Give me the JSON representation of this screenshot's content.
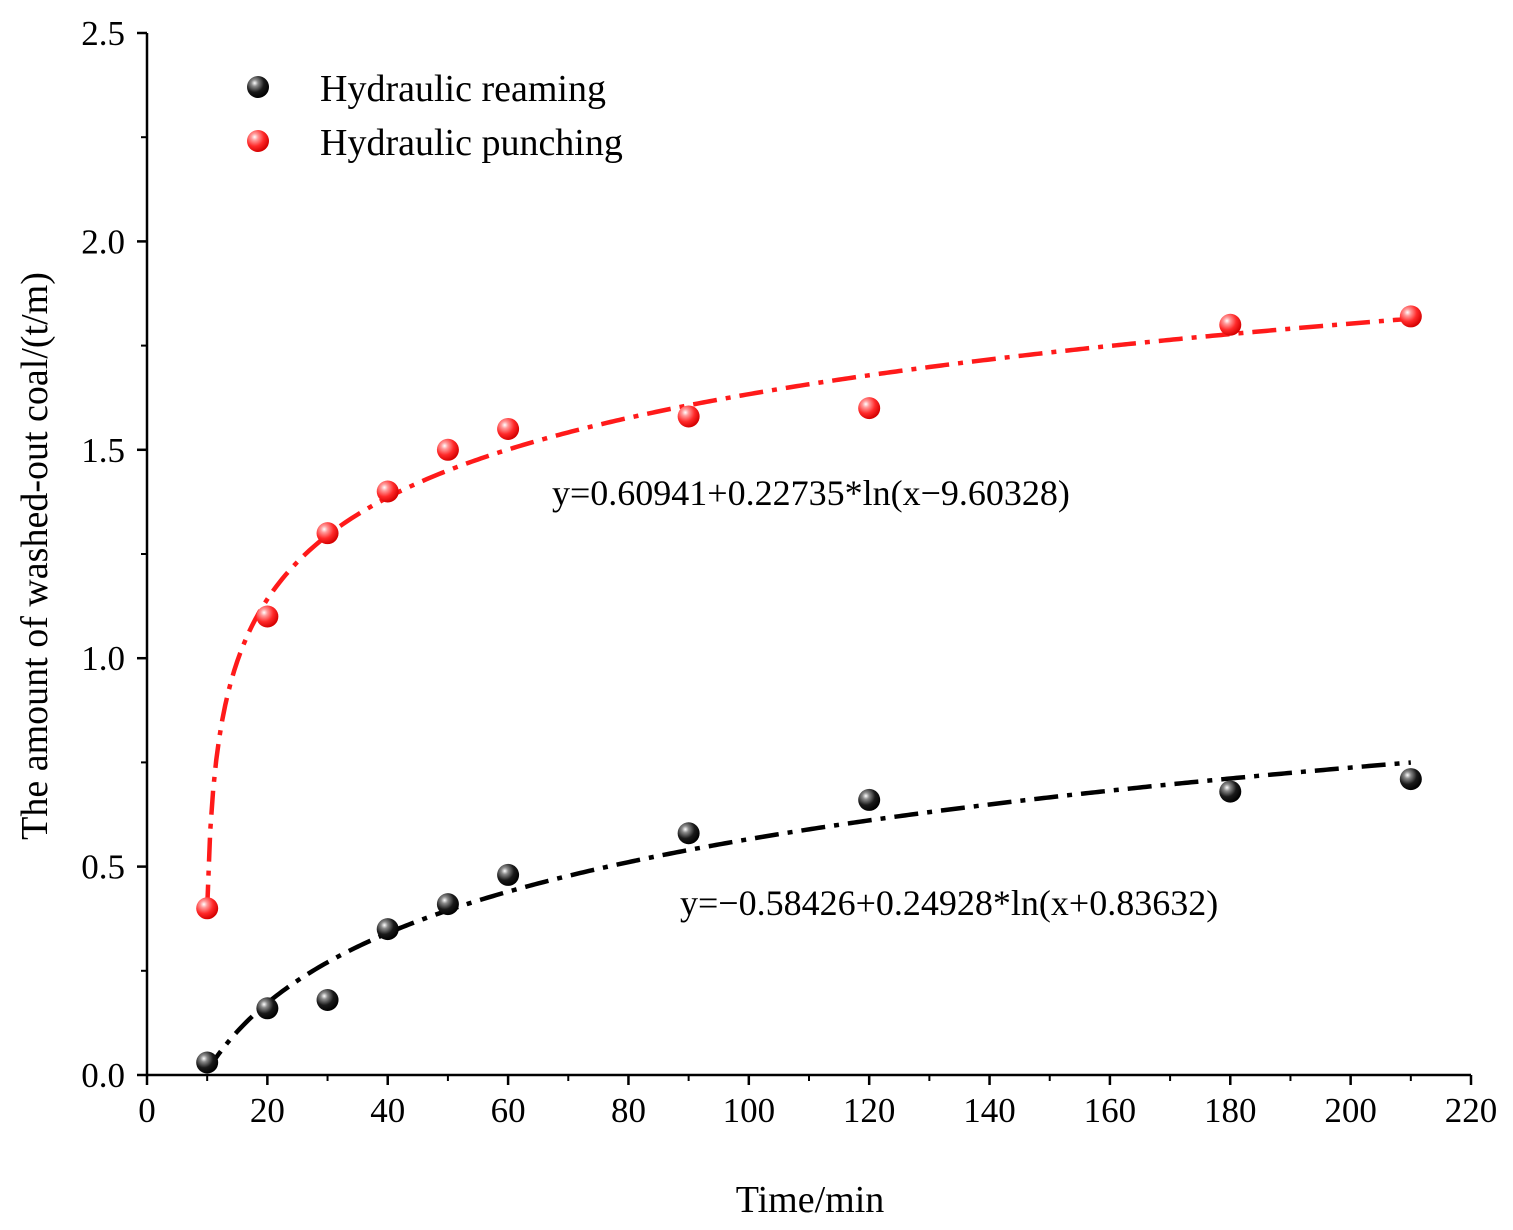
{
  "chart_data": {
    "type": "scatter",
    "xlabel": "Time/min",
    "ylabel": "The amount of washed-out coal/(t/m)",
    "xlim": [
      0,
      220
    ],
    "ylim": [
      0,
      2.5
    ],
    "xticks": [
      "0",
      "20",
      "40",
      "60",
      "80",
      "100",
      "120",
      "140",
      "160",
      "180",
      "200",
      "220"
    ],
    "yticks": [
      "0.0",
      "0.5",
      "1.0",
      "1.5",
      "2.0",
      "2.5"
    ],
    "legend_position": "top-left",
    "series": [
      {
        "name": "Hydraulic reaming",
        "color": "#000000",
        "x": [
          10,
          20,
          30,
          40,
          50,
          60,
          90,
          120,
          180,
          210
        ],
        "y": [
          0.03,
          0.16,
          0.18,
          0.35,
          0.41,
          0.48,
          0.58,
          0.66,
          0.68,
          0.71
        ],
        "fit": {
          "a": -0.58426,
          "b": 0.24928,
          "c": 0.83632,
          "x_range": [
            10,
            210
          ]
        },
        "equation": "y=−0.58426+0.24928*ln(x+0.83632)"
      },
      {
        "name": "Hydraulic punching",
        "color": "#ff1a1a",
        "x": [
          10,
          20,
          30,
          40,
          50,
          60,
          90,
          120,
          180,
          210
        ],
        "y": [
          0.4,
          1.1,
          1.3,
          1.4,
          1.5,
          1.55,
          1.58,
          1.6,
          1.8,
          1.82
        ],
        "fit": {
          "a": 0.60941,
          "b": 0.22735,
          "c": -9.60328,
          "x_range": [
            10,
            210
          ]
        },
        "equation": "y=0.60941+0.22735*ln(x−9.60328)"
      }
    ]
  }
}
